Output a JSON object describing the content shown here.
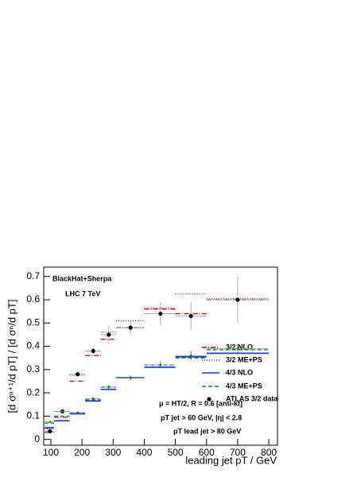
{
  "chart_data": {
    "type": "histogram",
    "x_label": "leading jet pT / GeV",
    "y_label": "[d σⁿ⁺¹/d pT] / [d σⁿ/d pT]",
    "annotations": [
      "BlackHat+Sherpa",
      "LHC 7 TeV",
      "μ = HT/2,  R = 0.6 [anti-kt]",
      "pT jet > 60 GeV, |η| < 2.8",
      "pT lead jet > 80 GeV"
    ],
    "bins": [
      80,
      110,
      160,
      210,
      260,
      310,
      400,
      500,
      600,
      800
    ],
    "xlim": [
      77,
      828
    ],
    "xticks": [
      100,
      200,
      300,
      400,
      500,
      600,
      700,
      800
    ],
    "ylim": [
      -0.025,
      0.74
    ],
    "yticks": [
      0,
      0.1,
      0.2,
      0.3,
      0.4,
      0.5,
      0.6,
      0.7
    ],
    "series": [
      {
        "name": "3/2 NLO",
        "color": "#cc0000",
        "style": "dashdot",
        "values": [
          0.03,
          0.095,
          0.25,
          0.36,
          0.43,
          0.48,
          0.56,
          0.54,
          0.6
        ]
      },
      {
        "name": "3/2 ME+PS",
        "color": "#3333cc",
        "style": "dotted",
        "values": [
          0.045,
          0.12,
          0.275,
          0.38,
          0.46,
          0.51,
          0.565,
          0.625,
          0.605
        ]
      },
      {
        "name": "4/3 NLO",
        "color": "#1a3fd1",
        "style": "solid",
        "values": [
          0.05,
          0.08,
          0.11,
          0.165,
          0.215,
          0.265,
          0.31,
          0.355,
          0.37
        ]
      },
      {
        "name": "4/3 ME+PS",
        "color": "#1a7f1a",
        "style": "dashed",
        "values": [
          0.07,
          0.1,
          0.115,
          0.17,
          0.225,
          0.265,
          0.32,
          0.35,
          0.385
        ]
      },
      {
        "name": "ATLAS 3/2 data",
        "color": "#000000",
        "style": "points",
        "x": [
          97,
          137,
          186,
          236,
          286,
          356,
          452,
          550,
          700
        ],
        "values": [
          0.035,
          0.12,
          0.28,
          0.38,
          0.45,
          0.48,
          0.54,
          0.53,
          0.6
        ],
        "errors": [
          0.008,
          0.01,
          0.012,
          0.015,
          0.04,
          0.03,
          0.05,
          0.06,
          0.1
        ]
      },
      {
        "color": "#1a7f1a",
        "style": "points",
        "x": [
          97,
          137,
          186,
          236,
          286,
          356,
          452,
          550,
          700
        ],
        "values": [
          0.075,
          0.12,
          0.115,
          0.175,
          0.225,
          0.265,
          0.32,
          0.36,
          0.39
        ],
        "errors": [
          0.005,
          0.005,
          0.005,
          0.008,
          0.01,
          0.01,
          0.015,
          0.02,
          0.02
        ]
      }
    ]
  }
}
